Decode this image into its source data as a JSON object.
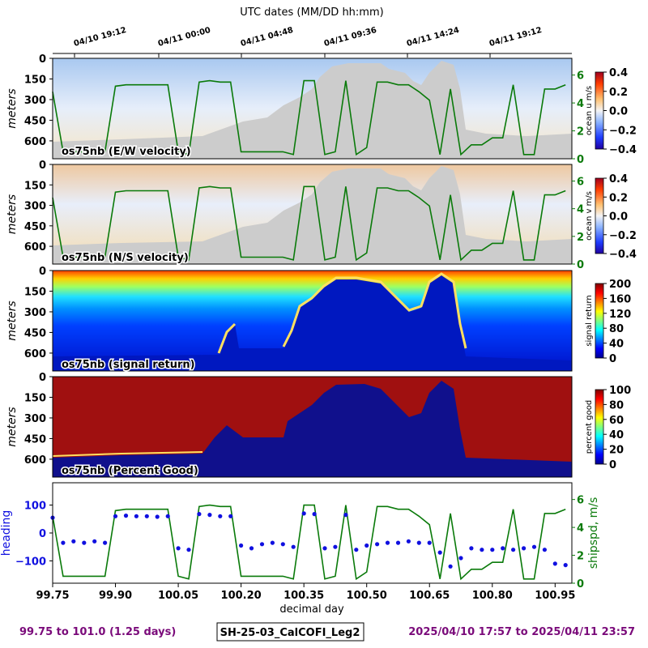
{
  "title": "UTC dates (MM/DD hh:mm)",
  "top_dates": [
    "04/10 19:12",
    "04/11 00:00",
    "04/11 04:48",
    "04/11 09:36",
    "04/11 14:24",
    "04/11 19:12"
  ],
  "depth_ticks": [
    "0",
    "150",
    "300",
    "450",
    "600"
  ],
  "ylabel_depth": "meters",
  "panels": [
    {
      "label": "os75nb (E/W velocity)",
      "cbar_label": "ocean u m/s",
      "cbar_ticks": [
        "0.4",
        "0.2",
        "0.0",
        "−0.2",
        "−0.4"
      ],
      "right_ticks": [
        "6",
        "4",
        "2",
        "0"
      ]
    },
    {
      "label": "os75nb (N/S velocity)",
      "cbar_label": "ocean v m/s",
      "cbar_ticks": [
        "0.4",
        "0.2",
        "0.0",
        "−0.2",
        "−0.4"
      ],
      "right_ticks": [
        "6",
        "4",
        "2",
        "0"
      ]
    },
    {
      "label": "os75nb (signal return)",
      "cbar_label": "signal return",
      "cbar_ticks": [
        "200",
        "160",
        "120",
        "80",
        "40",
        "0"
      ]
    },
    {
      "label": "os75nb (Percent Good)",
      "cbar_label": "percent good",
      "cbar_ticks": [
        "100",
        "80",
        "60",
        "40",
        "20",
        "0"
      ]
    }
  ],
  "bottom_panel": {
    "ylabel_left": "heading",
    "ylabel_right": "shipspd, m/s",
    "left_ticks": [
      "100",
      "0",
      "−100"
    ],
    "right_ticks": [
      "6",
      "4",
      "2",
      "0"
    ],
    "x_ticks": [
      "99.75",
      "99.90",
      "100.05",
      "100.20",
      "100.35",
      "100.50",
      "100.65",
      "100.80",
      "100.95"
    ],
    "xlabel": "decimal day"
  },
  "footer": {
    "left": "99.75 to 101.0 (1.25 days)",
    "center": "SH-25-03_CalCOFI_Leg2",
    "right": "2025/04/10 17:57 to 2025/04/11 23:57"
  },
  "colors": {
    "speed": "#0a7a0a",
    "heading": "#1010e0",
    "terrain": "#cccccc",
    "purple": "#7a0a7a"
  },
  "chart_data": {
    "type": "line",
    "x": [
      99.75,
      99.775,
      99.8,
      99.825,
      99.85,
      99.875,
      99.9,
      99.925,
      99.95,
      99.975,
      100.0,
      100.025,
      100.05,
      100.075,
      100.1,
      100.125,
      100.15,
      100.175,
      100.2,
      100.225,
      100.25,
      100.275,
      100.3,
      100.325,
      100.35,
      100.375,
      100.4,
      100.425,
      100.45,
      100.475,
      100.5,
      100.525,
      100.55,
      100.575,
      100.6,
      100.625,
      100.65,
      100.675,
      100.7,
      100.725,
      100.75,
      100.775,
      100.8,
      100.825,
      100.85,
      100.875,
      100.9,
      100.925,
      100.95,
      100.975
    ],
    "xlim": [
      99.75,
      100.99
    ],
    "series": [
      {
        "name": "heading",
        "axis": "left",
        "values": [
          55,
          -35,
          -30,
          -35,
          -30,
          -35,
          60,
          62,
          60,
          60,
          58,
          60,
          -55,
          -60,
          68,
          65,
          60,
          60,
          -45,
          -55,
          -40,
          -35,
          -40,
          -50,
          70,
          68,
          -55,
          -50,
          65,
          -60,
          -45,
          -40,
          -35,
          -35,
          -30,
          -35,
          -35,
          -70,
          -120,
          -90,
          -55,
          -60,
          -60,
          -55,
          -60,
          -55,
          -50,
          -60,
          -110,
          -115
        ]
      },
      {
        "name": "shipspd, m/s",
        "axis": "right",
        "values": [
          4.8,
          0.5,
          0.5,
          0.5,
          0.5,
          0.5,
          5.2,
          5.3,
          5.3,
          5.3,
          5.3,
          5.3,
          0.5,
          0.3,
          5.5,
          5.6,
          5.5,
          5.5,
          0.5,
          0.5,
          0.5,
          0.5,
          0.5,
          0.3,
          5.6,
          5.6,
          0.3,
          0.5,
          5.6,
          0.3,
          0.8,
          5.5,
          5.5,
          5.3,
          5.3,
          4.8,
          4.2,
          0.3,
          5.0,
          0.3,
          1.0,
          1.0,
          1.5,
          1.5,
          5.3,
          0.3,
          0.3,
          5.0,
          5.0,
          5.3
        ]
      }
    ],
    "ylim_left": [
      -180,
      180
    ],
    "ylim_right": [
      0,
      7.2
    ],
    "xlabel": "decimal day",
    "ylabel": "heading"
  }
}
